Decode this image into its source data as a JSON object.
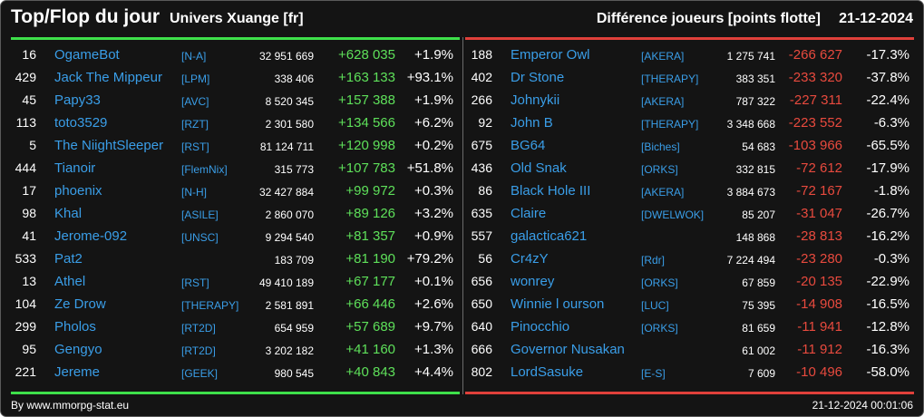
{
  "header": {
    "title": "Top/Flop du jour",
    "universe": "Univers Xuange [fr]",
    "diff_label": "Différence joueurs [points flotte]",
    "date": "21-12-2024"
  },
  "colors": {
    "positive": "#5ee05a",
    "negative": "#e84a3e",
    "link": "#3a9ee8",
    "background": "#141414"
  },
  "top": [
    {
      "rank": "16",
      "name": "OgameBot",
      "guild": "[N-A]",
      "score": "32 951 669",
      "delta": "+628 035",
      "pct": "+1.9%"
    },
    {
      "rank": "429",
      "name": "Jack The Mippeur",
      "guild": "[LPM]",
      "score": "338 406",
      "delta": "+163 133",
      "pct": "+93.1%"
    },
    {
      "rank": "45",
      "name": "Papy33",
      "guild": "[AVC]",
      "score": "8 520 345",
      "delta": "+157 388",
      "pct": "+1.9%"
    },
    {
      "rank": "113",
      "name": "toto3529",
      "guild": "[RZT]",
      "score": "2 301 580",
      "delta": "+134 566",
      "pct": "+6.2%"
    },
    {
      "rank": "5",
      "name": "The NiightSleeper",
      "guild": "[RST]",
      "score": "81 124 711",
      "delta": "+120 998",
      "pct": "+0.2%"
    },
    {
      "rank": "444",
      "name": "Tianoir",
      "guild": "[FlemNix]",
      "score": "315 773",
      "delta": "+107 783",
      "pct": "+51.8%"
    },
    {
      "rank": "17",
      "name": "phoenix",
      "guild": "[N-H]",
      "score": "32 427 884",
      "delta": "+99 972",
      "pct": "+0.3%"
    },
    {
      "rank": "98",
      "name": "Khal",
      "guild": "[ASILE]",
      "score": "2 860 070",
      "delta": "+89 126",
      "pct": "+3.2%"
    },
    {
      "rank": "41",
      "name": "Jerome-092",
      "guild": "[UNSC]",
      "score": "9 294 540",
      "delta": "+81 357",
      "pct": "+0.9%"
    },
    {
      "rank": "533",
      "name": "Pat2",
      "guild": "",
      "score": "183 709",
      "delta": "+81 190",
      "pct": "+79.2%"
    },
    {
      "rank": "13",
      "name": "Athel",
      "guild": "[RST]",
      "score": "49 410 189",
      "delta": "+67 177",
      "pct": "+0.1%"
    },
    {
      "rank": "104",
      "name": "Ze Drow",
      "guild": "[THERAPY]",
      "score": "2 581 891",
      "delta": "+66 446",
      "pct": "+2.6%"
    },
    {
      "rank": "299",
      "name": "Pholos",
      "guild": "[RT2D]",
      "score": "654 959",
      "delta": "+57 689",
      "pct": "+9.7%"
    },
    {
      "rank": "95",
      "name": "Gengyo",
      "guild": "[RT2D]",
      "score": "3 202 182",
      "delta": "+41 160",
      "pct": "+1.3%"
    },
    {
      "rank": "221",
      "name": "Jereme",
      "guild": "[GEEK]",
      "score": "980 545",
      "delta": "+40 843",
      "pct": "+4.4%"
    }
  ],
  "flop": [
    {
      "rank": "188",
      "name": "Emperor Owl",
      "guild": "[AKERA]",
      "score": "1 275 741",
      "delta": "-266 627",
      "pct": "-17.3%"
    },
    {
      "rank": "402",
      "name": "Dr Stone",
      "guild": "[THERAPY]",
      "score": "383 351",
      "delta": "-233 320",
      "pct": "-37.8%"
    },
    {
      "rank": "266",
      "name": "Johnykii",
      "guild": "[AKERA]",
      "score": "787 322",
      "delta": "-227 311",
      "pct": "-22.4%"
    },
    {
      "rank": "92",
      "name": "John B",
      "guild": "[THERAPY]",
      "score": "3 348 668",
      "delta": "-223 552",
      "pct": "-6.3%"
    },
    {
      "rank": "675",
      "name": "BG64",
      "guild": "[Biches]",
      "score": "54 683",
      "delta": "-103 966",
      "pct": "-65.5%"
    },
    {
      "rank": "436",
      "name": "Old Snak",
      "guild": "[ORKS]",
      "score": "332 815",
      "delta": "-72 612",
      "pct": "-17.9%"
    },
    {
      "rank": "86",
      "name": "Black Hole III",
      "guild": "[AKERA]",
      "score": "3 884 673",
      "delta": "-72 167",
      "pct": "-1.8%"
    },
    {
      "rank": "635",
      "name": "Claire",
      "guild": "[DWELWOK]",
      "score": "85 207",
      "delta": "-31 047",
      "pct": "-26.7%"
    },
    {
      "rank": "557",
      "name": "galactica621",
      "guild": "",
      "score": "148 868",
      "delta": "-28 813",
      "pct": "-16.2%"
    },
    {
      "rank": "56",
      "name": "Cr4zY",
      "guild": "[Rdr]",
      "score": "7 224 494",
      "delta": "-23 280",
      "pct": "-0.3%"
    },
    {
      "rank": "656",
      "name": "wonrey",
      "guild": "[ORKS]",
      "score": "67 859",
      "delta": "-20 135",
      "pct": "-22.9%"
    },
    {
      "rank": "650",
      "name": "Winnie l ourson",
      "guild": "[LUC]",
      "score": "75 395",
      "delta": "-14 908",
      "pct": "-16.5%"
    },
    {
      "rank": "640",
      "name": "Pinocchio",
      "guild": "[ORKS]",
      "score": "81 659",
      "delta": "-11 941",
      "pct": "-12.8%"
    },
    {
      "rank": "666",
      "name": "Governor Nusakan",
      "guild": "",
      "score": "61 002",
      "delta": "-11 912",
      "pct": "-16.3%"
    },
    {
      "rank": "802",
      "name": "LordSasuke",
      "guild": "[E-S]",
      "score": "7 609",
      "delta": "-10 496",
      "pct": "-58.0%"
    }
  ],
  "footer": {
    "source": "By www.mmorpg-stat.eu",
    "timestamp": "21-12-2024 00:01:06"
  }
}
